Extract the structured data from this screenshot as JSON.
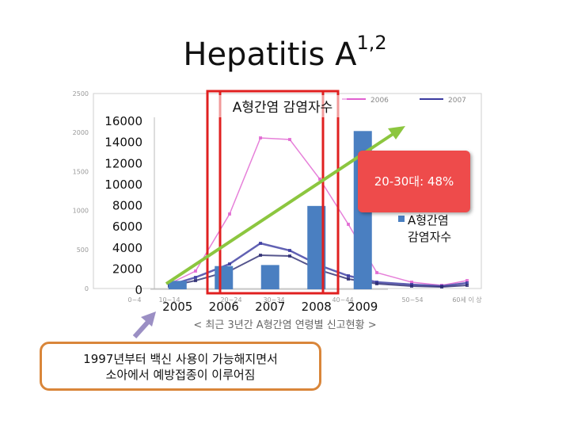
{
  "title": {
    "main": "Hepatitis  A",
    "superscript": "1,2"
  },
  "background_chart": {
    "heading": "A형간염 감염자수",
    "legend": [
      "2006",
      "2007"
    ],
    "y_ticks": [
      "2500",
      "2000",
      "1500",
      "1000",
      "500",
      "0"
    ],
    "x_ticks": [
      "0~4",
      "10~14",
      "20~24",
      "30~34",
      "40~44",
      "50~54",
      "60세 이 상"
    ],
    "caption": "< 최근 3년간 A형간염 연령별 신고현황 >",
    "series_colors": {
      "line_a": "#e060d0",
      "line_b": "#2a2a70",
      "line_c": "#3a3aa0"
    }
  },
  "chart_data": {
    "type": "bar",
    "categories": [
      "2005",
      "2006",
      "2007",
      "2008",
      "2009"
    ],
    "series": [
      {
        "name": "A형간염 감염자수",
        "values": [
          800,
          2200,
          2300,
          7900,
          15000
        ]
      }
    ],
    "ylim": [
      0,
      16000
    ],
    "y_ticks": [
      "16000",
      "14000",
      "12000",
      "10000",
      "8000",
      "6000",
      "4000",
      "2000",
      "0"
    ],
    "legend": {
      "label": [
        "A형간염",
        "감염자수"
      ],
      "position": "right"
    },
    "bar_color": "#4a7fc1",
    "annotation": "20-30대: 48%",
    "annotation_color": "#ee4b4b",
    "trend_color": "#8cc63f",
    "highlight_color": "#e02020"
  },
  "callout": {
    "lines": [
      "1997년부터 백신 사용이 가능해지면서",
      "소아에서 예방접종이 이루어짐"
    ]
  }
}
